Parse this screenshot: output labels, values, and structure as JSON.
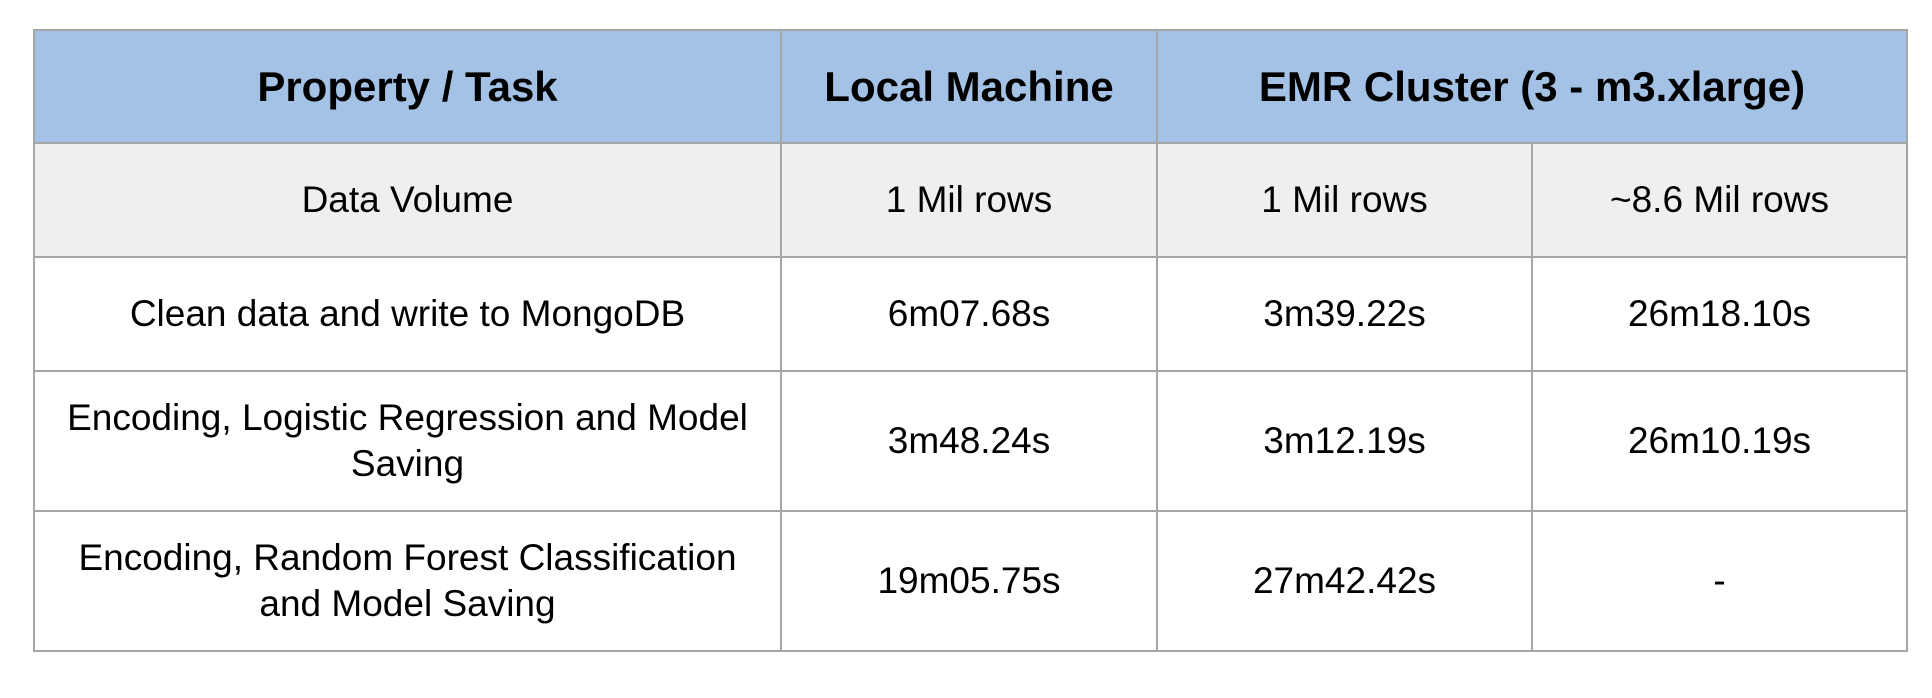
{
  "colors": {
    "header_bg": "#a4c2e6",
    "subheader_bg": "#efefef",
    "border": "#a6a6a6"
  },
  "table": {
    "headers": {
      "property": "Property / Task",
      "local": "Local Machine",
      "emr": "EMR Cluster (3 - m3.xlarge)"
    },
    "rows": [
      [
        "Data Volume",
        "1 Mil rows",
        "1 Mil rows",
        "~8.6 Mil rows"
      ],
      [
        "Clean data and write to MongoDB",
        "6m07.68s",
        "3m39.22s",
        "26m18.10s"
      ],
      [
        "Encoding, Logistic Regression and Model Saving",
        "3m48.24s",
        "3m12.19s",
        "26m10.19s"
      ],
      [
        "Encoding, Random Forest Classification and Model Saving",
        "19m05.75s",
        "27m42.42s",
        "-"
      ]
    ]
  }
}
